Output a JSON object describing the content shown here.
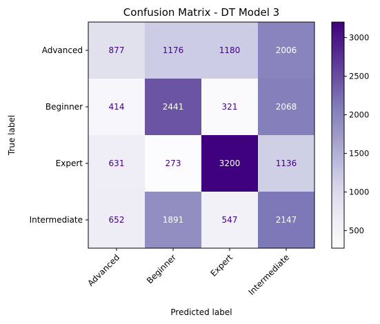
{
  "chart_data": {
    "type": "heatmap",
    "title": "Confusion Matrix - DT Model 3",
    "xlabel": "Predicted label",
    "ylabel": "True label",
    "x_categories": [
      "Advanced",
      "Beginner",
      "Expert",
      "Intermediate"
    ],
    "y_categories": [
      "Advanced",
      "Beginner",
      "Expert",
      "Intermediate"
    ],
    "matrix": [
      [
        877,
        1176,
        1180,
        2006
      ],
      [
        414,
        2441,
        321,
        2068
      ],
      [
        631,
        273,
        3200,
        1136
      ],
      [
        652,
        1891,
        547,
        2147
      ]
    ],
    "colormap": "Purples",
    "vmin": 273,
    "vmax": 3200,
    "colorbar_ticks": [
      500,
      1000,
      1500,
      2000,
      2500,
      3000
    ],
    "text_color_dark": "#3f007d",
    "text_color_light": "#ffffff"
  }
}
